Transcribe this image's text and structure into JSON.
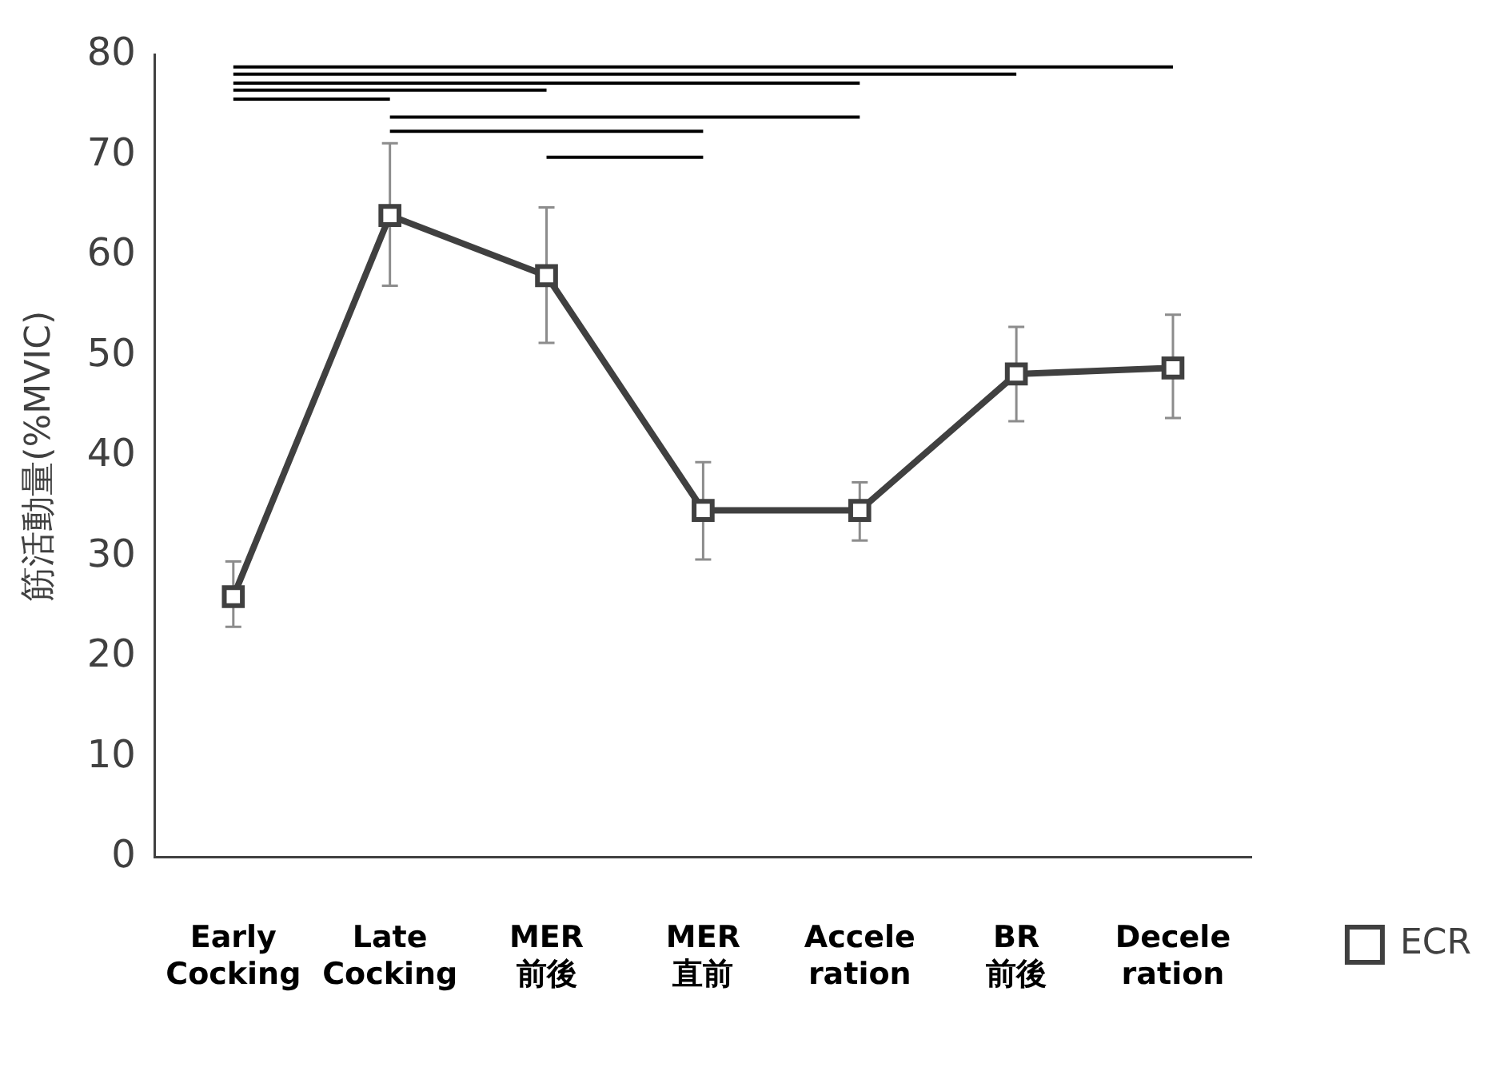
{
  "chart_data": {
    "type": "line",
    "ylabel": "筋活動量(%MVIC)",
    "categories": [
      "Early\nCocking",
      "Late\nCocking",
      "MER\n前後",
      "MER\n直前",
      "Accele\nration",
      "BR\n前後",
      "Decele\nration"
    ],
    "series": [
      {
        "name": "ECR",
        "color": "#404040",
        "values": [
          26,
          64,
          58,
          34.6,
          34.6,
          48.2,
          48.8
        ],
        "errors": [
          [
            23,
            29.5
          ],
          [
            57,
            71.2
          ],
          [
            51.3,
            64.8
          ],
          [
            29.7,
            39.4
          ],
          [
            31.6,
            37.4
          ],
          [
            43.5,
            52.9
          ],
          [
            43.8,
            54.1
          ]
        ]
      },
      {
        "type": "line",
        "marker": "none",
        "color": "#000000",
        "x": [
          "Early\nCocking",
          "Decele\nration"
        ],
        "values": [
          78.8,
          78.8
        ]
      },
      {
        "type": "line",
        "marker": "none",
        "color": "#000000",
        "x": [
          "Early\nCocking",
          "BR\n前後"
        ],
        "values": [
          78.1,
          78.1
        ]
      },
      {
        "type": "line",
        "marker": "none",
        "color": "#000000",
        "x": [
          "Early\nCocking",
          "Accele\nration"
        ],
        "values": [
          77.2,
          77.2
        ]
      },
      {
        "type": "line",
        "marker": "none",
        "color": "#000000",
        "x": [
          "Early\nCocking",
          "MER\n前後"
        ],
        "values": [
          76.5,
          76.5
        ]
      },
      {
        "type": "line",
        "marker": "none",
        "color": "#000000",
        "x": [
          "Early\nCocking",
          "Late\nCocking"
        ],
        "values": [
          75.6,
          75.6
        ]
      },
      {
        "type": "line",
        "marker": "none",
        "color": "#000000",
        "x": [
          "Late\nCocking",
          "Accele\nration"
        ],
        "values": [
          73.8,
          73.8
        ]
      },
      {
        "type": "line",
        "marker": "none",
        "color": "#000000",
        "x": [
          "Late\nCocking",
          "MER\n直前"
        ],
        "values": [
          72.4,
          72.4
        ]
      },
      {
        "type": "line",
        "marker": "none",
        "color": "#000000",
        "x": [
          "MER\n前後",
          "MER\n直前"
        ],
        "values": [
          69.8,
          69.8
        ]
      }
    ],
    "ylim": [
      0,
      80
    ],
    "yticks": [
      0,
      10,
      20,
      30,
      40,
      50,
      60,
      70,
      80
    ],
    "grid": false,
    "legend": "bottom right",
    "marker": "square",
    "line_style": "solid"
  }
}
